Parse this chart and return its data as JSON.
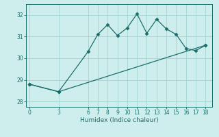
{
  "xlabel": "Humidex (Indice chaleur)",
  "bg_color": "#ceeeed",
  "grid_color": "#a8d8d5",
  "line_color": "#1a6e6a",
  "line1_x": [
    0,
    3,
    6,
    7,
    8,
    9,
    10,
    11,
    12,
    13,
    14,
    15,
    16,
    17,
    18
  ],
  "line1_y": [
    28.8,
    28.45,
    30.3,
    31.1,
    31.55,
    31.05,
    31.4,
    32.05,
    31.15,
    31.8,
    31.35,
    31.1,
    30.45,
    30.35,
    30.6
  ],
  "line2_x": [
    0,
    3,
    18
  ],
  "line2_y": [
    28.8,
    28.45,
    30.6
  ],
  "ylim": [
    27.75,
    32.5
  ],
  "xlim": [
    -0.3,
    18.7
  ],
  "yticks": [
    28,
    29,
    30,
    31,
    32
  ],
  "xticks": [
    0,
    3,
    6,
    7,
    8,
    9,
    10,
    11,
    12,
    13,
    14,
    15,
    16,
    17,
    18
  ],
  "marker": "D",
  "markersize": 2.5,
  "linewidth": 0.9,
  "tick_fontsize": 5.5,
  "xlabel_fontsize": 6.5
}
